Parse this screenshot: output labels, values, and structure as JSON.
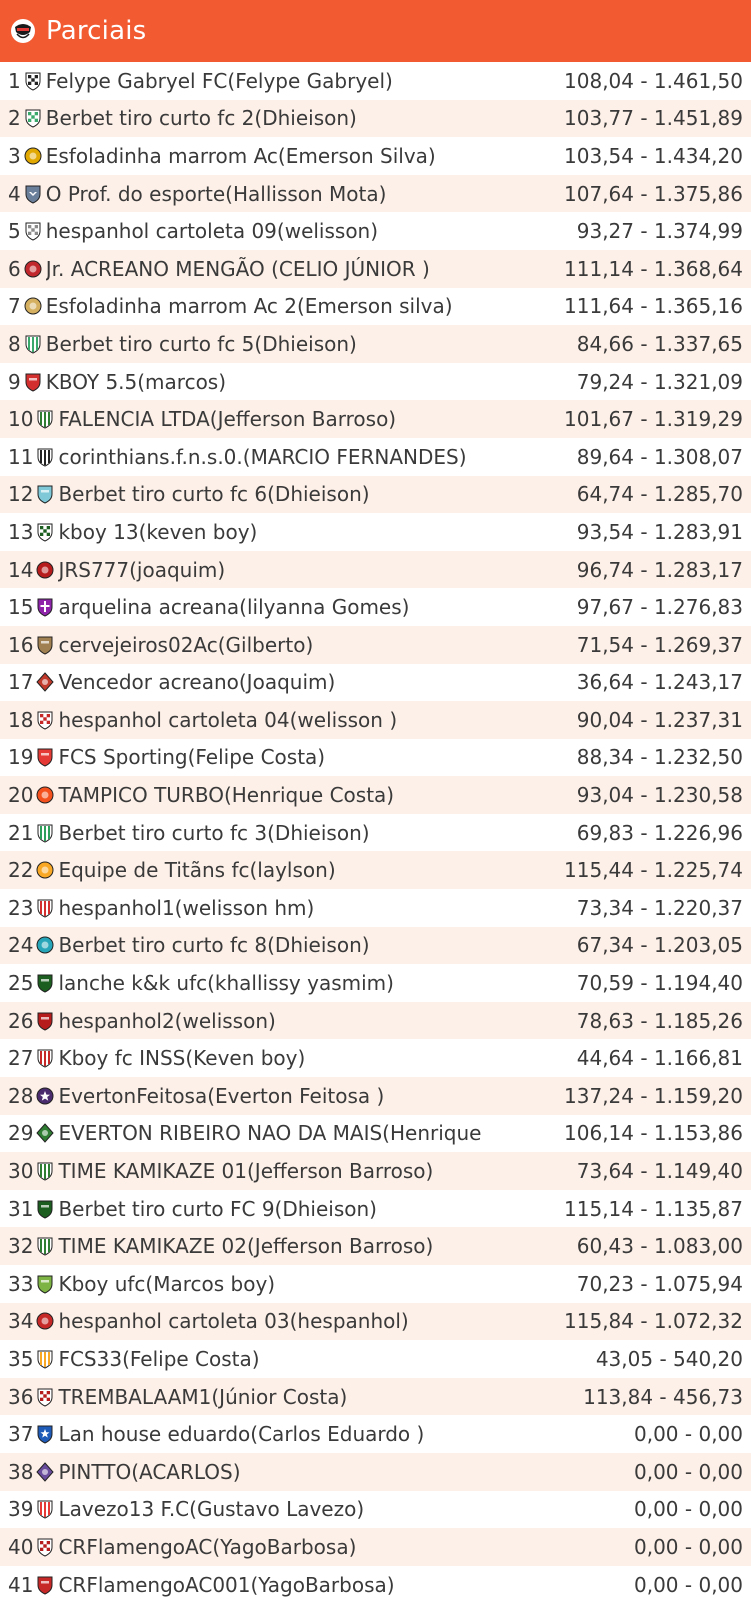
{
  "header": {
    "title": "Parciais",
    "logo_icon": "cartola-shield-icon",
    "background": "#f25a32"
  },
  "teams": [
    {
      "rank": "1",
      "name": "Felype Gabryel FC(Felype Gabryel)",
      "score": "108,04 - 1.461,50",
      "crest_icon": "checkered-shield-icon",
      "crest_color": "#222222"
    },
    {
      "rank": "2",
      "name": "Berbet tiro curto fc 2(Dhieison)",
      "score": "103,77 - 1.451,89",
      "crest_icon": "checkered-shield-icon",
      "crest_color": "#3aa86a"
    },
    {
      "rank": "3",
      "name": "Esfoladinha marrom Ac(Emerson Silva)",
      "score": "103,54 - 1.434,20",
      "crest_icon": "round-crest-icon",
      "crest_color": "#e0a800"
    },
    {
      "rank": "4",
      "name": "O  Prof. do esporte(Hallisson Mota)",
      "score": "107,64 - 1.375,86",
      "crest_icon": "eagle-shield-icon",
      "crest_color": "#6a7f9a"
    },
    {
      "rank": "5",
      "name": "hespanhol cartoleta 09(welisson)",
      "score": "93,27 - 1.374,99",
      "crest_icon": "checkered-shield-icon",
      "crest_color": "#8a8a8a"
    },
    {
      "rank": "6",
      "name": "Jr. ACREANO MENGÃO (CELIO JÚNIOR )",
      "score": "111,14 - 1.368,64",
      "crest_icon": "round-crest-icon",
      "crest_color": "#c0282d"
    },
    {
      "rank": "7",
      "name": "Esfoladinha marrom Ac 2(Emerson silva)",
      "score": "111,64 - 1.365,16",
      "crest_icon": "round-crest-icon",
      "crest_color": "#d4b060"
    },
    {
      "rank": "8",
      "name": "Berbet tiro curto fc 5(Dhieison)",
      "score": "84,66 - 1.337,65",
      "crest_icon": "striped-shield-icon",
      "crest_color": "#3aa86a"
    },
    {
      "rank": "9",
      "name": "KBOY 5.5(marcos)",
      "score": "79,24 - 1.321,09",
      "crest_icon": "shield-icon",
      "crest_color": "#d32f2f"
    },
    {
      "rank": "10",
      "name": "FALENCIA LTDA(Jefferson Barroso)",
      "score": "101,67 - 1.319,29",
      "crest_icon": "striped-shield-icon",
      "crest_color": "#2e7d32"
    },
    {
      "rank": "11",
      "name": "corinthians.f.n.s.0.(MARCIO FERNANDES)",
      "score": "89,64 - 1.308,07",
      "crest_icon": "striped-shield-icon",
      "crest_color": "#222222"
    },
    {
      "rank": "12",
      "name": "Berbet tiro curto fc 6(Dhieison)",
      "score": "64,74 - 1.285,70",
      "crest_icon": "shield-icon",
      "crest_color": "#7ec8d8"
    },
    {
      "rank": "13",
      "name": "kboy 13(keven boy)",
      "score": "93,54 - 1.283,91",
      "crest_icon": "checkered-shield-icon",
      "crest_color": "#1b5e20"
    },
    {
      "rank": "14",
      "name": "JRS777(joaquim)",
      "score": "96,74 - 1.283,17",
      "crest_icon": "round-crest-icon",
      "crest_color": "#b71c1c"
    },
    {
      "rank": "15",
      "name": "arquelina acreana(lilyanna Gomes)",
      "score": "97,67 - 1.276,83",
      "crest_icon": "cross-shield-icon",
      "crest_color": "#8e24aa"
    },
    {
      "rank": "16",
      "name": "cervejeiros02Ac(Gilberto)",
      "score": "71,54 - 1.269,37",
      "crest_icon": "shield-icon",
      "crest_color": "#a08050"
    },
    {
      "rank": "17",
      "name": "Vencedor acreano(Joaquim)",
      "score": "36,64 - 1.243,17",
      "crest_icon": "diamond-crest-icon",
      "crest_color": "#c0392b"
    },
    {
      "rank": "18",
      "name": "hespanhol cartoleta 04(welisson )",
      "score": "90,04 - 1.237,31",
      "crest_icon": "checkered-shield-icon",
      "crest_color": "#c62828"
    },
    {
      "rank": "19",
      "name": "FCS Sporting(Felipe Costa)",
      "score": "88,34 - 1.232,50",
      "crest_icon": "shield-icon",
      "crest_color": "#e53935"
    },
    {
      "rank": "20",
      "name": "TAMPICO TURBO(Henrique Costa)",
      "score": "93,04 - 1.230,58",
      "crest_icon": "round-crest-icon",
      "crest_color": "#f4511e"
    },
    {
      "rank": "21",
      "name": "Berbet tiro curto fc 3(Dhieison)",
      "score": "69,83 - 1.226,96",
      "crest_icon": "striped-shield-icon",
      "crest_color": "#2e9e5b"
    },
    {
      "rank": "22",
      "name": "Equipe de Titãns fc(laylson)",
      "score": "115,44 - 1.225,74",
      "crest_icon": "round-crest-icon",
      "crest_color": "#f9a825"
    },
    {
      "rank": "23",
      "name": "hespanhol1(welisson hm)",
      "score": "73,34 - 1.220,37",
      "crest_icon": "striped-shield-icon",
      "crest_color": "#d32f2f"
    },
    {
      "rank": "24",
      "name": "Berbet tiro curto fc 8(Dhieison)",
      "score": "67,34 - 1.203,05",
      "crest_icon": "round-crest-icon",
      "crest_color": "#26a6b8"
    },
    {
      "rank": "25",
      "name": "lanche k&k ufc(khallissy yasmim)",
      "score": "70,59 - 1.194,40",
      "crest_icon": "shield-icon",
      "crest_color": "#1b5e20"
    },
    {
      "rank": "26",
      "name": "hespanhol2(welisson)",
      "score": "78,63 - 1.185,26",
      "crest_icon": "shield-icon",
      "crest_color": "#b71c1c"
    },
    {
      "rank": "27",
      "name": "Kboy fc INSS(Keven boy)",
      "score": "44,64 - 1.166,81",
      "crest_icon": "striped-shield-icon",
      "crest_color": "#c62828"
    },
    {
      "rank": "28",
      "name": "EvertonFeitosa(Everton Feitosa )",
      "score": "137,24 - 1.159,20",
      "crest_icon": "star-crest-icon",
      "crest_color": "#4a2c6e"
    },
    {
      "rank": "29",
      "name": "EVERTON RIBEIRO NAO DA MAIS(Henrique",
      "score": "106,14 - 1.153,86",
      "crest_icon": "diamond-crest-icon",
      "crest_color": "#2e7d32"
    },
    {
      "rank": "30",
      "name": "TIME KAMIKAZE 01(Jefferson Barroso)",
      "score": "73,64 - 1.149,40",
      "crest_icon": "striped-shield-icon",
      "crest_color": "#2e7d32"
    },
    {
      "rank": "31",
      "name": "Berbet tiro curto FC 9(Dhieison)",
      "score": "115,14 - 1.135,87",
      "crest_icon": "shield-icon",
      "crest_color": "#1b5e20"
    },
    {
      "rank": "32",
      "name": "TIME KAMIKAZE 02(Jefferson Barroso)",
      "score": "60,43 - 1.083,00",
      "crest_icon": "striped-shield-icon",
      "crest_color": "#2e7d32"
    },
    {
      "rank": "33",
      "name": "Kboy ufc(Marcos boy)",
      "score": "70,23 - 1.075,94",
      "crest_icon": "shield-icon",
      "crest_color": "#7cb342"
    },
    {
      "rank": "34",
      "name": "hespanhol cartoleta 03(hespanhol)",
      "score": "115,84 - 1.072,32",
      "crest_icon": "round-crest-icon",
      "crest_color": "#c62828"
    },
    {
      "rank": "35",
      "name": "FCS33(Felipe Costa)",
      "score": "43,05 - 540,20",
      "crest_icon": "striped-shield-icon",
      "crest_color": "#f9a825"
    },
    {
      "rank": "36",
      "name": "TREMBALAAM1(Júnior Costa)",
      "score": "113,84 - 456,73",
      "crest_icon": "checkered-shield-icon",
      "crest_color": "#b71c1c"
    },
    {
      "rank": "37",
      "name": "Lan house eduardo(Carlos Eduardo )",
      "score": "0,00 - 0,00",
      "crest_icon": "star-shield-icon",
      "crest_color": "#1e5bb8"
    },
    {
      "rank": "38",
      "name": "PINTTO(ACARLOS)",
      "score": "0,00 - 0,00",
      "crest_icon": "diamond-crest-icon",
      "crest_color": "#6a4c9c"
    },
    {
      "rank": "39",
      "name": "Lavezo13 F.C(Gustavo Lavezo)",
      "score": "0,00 - 0,00",
      "crest_icon": "striped-shield-icon",
      "crest_color": "#e53935"
    },
    {
      "rank": "40",
      "name": "CRFlamengoAC(YagoBarbosa)",
      "score": "0,00 - 0,00",
      "crest_icon": "checkered-shield-icon",
      "crest_color": "#b71c1c"
    },
    {
      "rank": "41",
      "name": "CRFlamengoAC001(YagoBarbosa)",
      "score": "0,00 - 0,00",
      "crest_icon": "shield-icon",
      "crest_color": "#c62828"
    }
  ]
}
